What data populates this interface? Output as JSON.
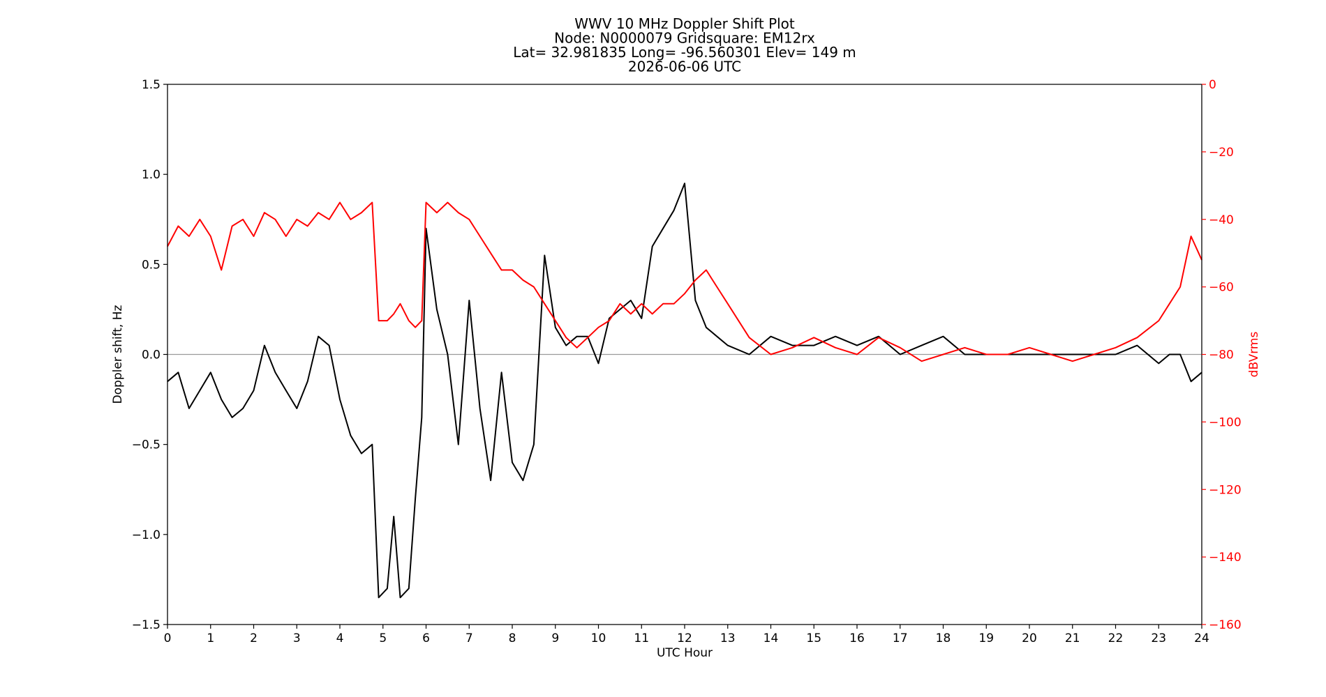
{
  "chart_data": {
    "type": "line",
    "title_lines": [
      "WWV 10 MHz Doppler Shift Plot",
      "Node:  N0000079     Gridsquare:  EM12rx",
      "Lat= 32.981835    Long= -96.560301    Elev= 149 m",
      "2026-06-06  UTC"
    ],
    "xlabel": "UTC Hour",
    "ylabel": "Doppler shift, Hz",
    "y2label": "dBVrms",
    "xlim": [
      0,
      24
    ],
    "ylim": [
      -1.5,
      1.5
    ],
    "y2lim": [
      -160,
      0
    ],
    "x_ticks": [
      0,
      1,
      2,
      3,
      4,
      5,
      6,
      7,
      8,
      9,
      10,
      11,
      12,
      13,
      14,
      15,
      16,
      17,
      18,
      19,
      20,
      21,
      22,
      23,
      24
    ],
    "x_tick_labels": [
      "0",
      "1",
      "2",
      "3",
      "4",
      "5",
      "6",
      "7",
      "8",
      "9",
      "10",
      "11",
      "12",
      "13",
      "14",
      "15",
      "16",
      "17",
      "18",
      "19",
      "20",
      "21",
      "22",
      "23",
      "24"
    ],
    "y_ticks": [
      -1.5,
      -1.0,
      -0.5,
      0.0,
      0.5,
      1.0,
      1.5
    ],
    "y_tick_labels": [
      "−1.5",
      "−1.0",
      "−0.5",
      "0.0",
      "0.5",
      "1.0",
      "1.5"
    ],
    "y2_ticks": [
      -160,
      -140,
      -120,
      -100,
      -80,
      -60,
      -40,
      -20,
      0
    ],
    "y2_tick_labels": [
      "−160",
      "−140",
      "−120",
      "−100",
      "−80",
      "−60",
      "−40",
      "−20",
      "0"
    ],
    "reference_line_y": 0.0,
    "grid": false,
    "colors": {
      "doppler": "#000000",
      "power": "#ff0000",
      "zero_line": "#999999",
      "axis": "#000000",
      "right_axis": "#ff0000"
    },
    "series": [
      {
        "axis": "left",
        "x": [
          0,
          0.25,
          0.5,
          0.75,
          1,
          1.25,
          1.5,
          1.75,
          2,
          2.25,
          2.5,
          2.75,
          3,
          3.25,
          3.5,
          3.75,
          4,
          4.25,
          4.5,
          4.75,
          4.9,
          5.1,
          5.25,
          5.4,
          5.6,
          5.75,
          5.9,
          6,
          6.25,
          6.5,
          6.75,
          7,
          7.25,
          7.5,
          7.75,
          8,
          8.25,
          8.5,
          8.75,
          9,
          9.25,
          9.5,
          9.75,
          10,
          10.25,
          10.5,
          10.75,
          11,
          11.25,
          11.5,
          11.75,
          12,
          12.25,
          12.5,
          12.75,
          13,
          13.5,
          14,
          14.5,
          15,
          15.5,
          16,
          16.5,
          17,
          17.5,
          18,
          18.5,
          19,
          19.5,
          20,
          20.5,
          21,
          21.5,
          22,
          22.5,
          23,
          23.25,
          23.5,
          23.75,
          24
        ],
        "y": [
          -0.15,
          -0.1,
          -0.3,
          -0.2,
          -0.1,
          -0.25,
          -0.35,
          -0.3,
          -0.2,
          0.05,
          -0.1,
          -0.2,
          -0.3,
          -0.15,
          0.1,
          0.05,
          -0.25,
          -0.45,
          -0.55,
          -0.5,
          -1.35,
          -1.3,
          -0.9,
          -1.35,
          -1.3,
          -0.8,
          -0.35,
          0.7,
          0.25,
          0.0,
          -0.5,
          0.3,
          -0.3,
          -0.7,
          -0.1,
          -0.6,
          -0.7,
          -0.5,
          0.55,
          0.15,
          0.05,
          0.1,
          0.1,
          -0.05,
          0.2,
          0.25,
          0.3,
          0.2,
          0.6,
          0.7,
          0.8,
          0.95,
          0.3,
          0.15,
          0.1,
          0.05,
          0.0,
          0.1,
          0.05,
          0.05,
          0.1,
          0.05,
          0.1,
          0.0,
          0.05,
          0.1,
          0.0,
          0.0,
          0.0,
          0.0,
          0.0,
          0.0,
          0.0,
          0.0,
          0.05,
          -0.05,
          0.0,
          0.0,
          -0.15,
          -0.1
        ]
      },
      {
        "axis": "right",
        "x": [
          0,
          0.25,
          0.5,
          0.75,
          1,
          1.25,
          1.5,
          1.75,
          2,
          2.25,
          2.5,
          2.75,
          3,
          3.25,
          3.5,
          3.75,
          4,
          4.25,
          4.5,
          4.75,
          4.9,
          5.1,
          5.25,
          5.4,
          5.6,
          5.75,
          5.9,
          6,
          6.25,
          6.5,
          6.75,
          7,
          7.25,
          7.5,
          7.75,
          8,
          8.25,
          8.5,
          8.75,
          9,
          9.25,
          9.5,
          9.75,
          10,
          10.25,
          10.5,
          10.75,
          11,
          11.25,
          11.5,
          11.75,
          12,
          12.25,
          12.5,
          12.75,
          13,
          13.5,
          14,
          14.5,
          15,
          15.5,
          16,
          16.5,
          17,
          17.5,
          18,
          18.5,
          19,
          19.5,
          20,
          20.5,
          21,
          21.5,
          22,
          22.5,
          23,
          23.25,
          23.5,
          23.75,
          24
        ],
        "y": [
          -48,
          -42,
          -45,
          -40,
          -45,
          -55,
          -42,
          -40,
          -45,
          -38,
          -40,
          -45,
          -40,
          -42,
          -38,
          -40,
          -35,
          -40,
          -38,
          -35,
          -70,
          -70,
          -68,
          -65,
          -70,
          -72,
          -70,
          -35,
          -38,
          -35,
          -38,
          -40,
          -45,
          -50,
          -55,
          -55,
          -58,
          -60,
          -65,
          -70,
          -75,
          -78,
          -75,
          -72,
          -70,
          -65,
          -68,
          -65,
          -68,
          -65,
          -65,
          -62,
          -58,
          -55,
          -60,
          -65,
          -75,
          -80,
          -78,
          -75,
          -78,
          -80,
          -75,
          -78,
          -82,
          -80,
          -78,
          -80,
          -80,
          -78,
          -80,
          -82,
          -80,
          -78,
          -75,
          -70,
          -65,
          -60,
          -45,
          -52
        ]
      }
    ]
  }
}
